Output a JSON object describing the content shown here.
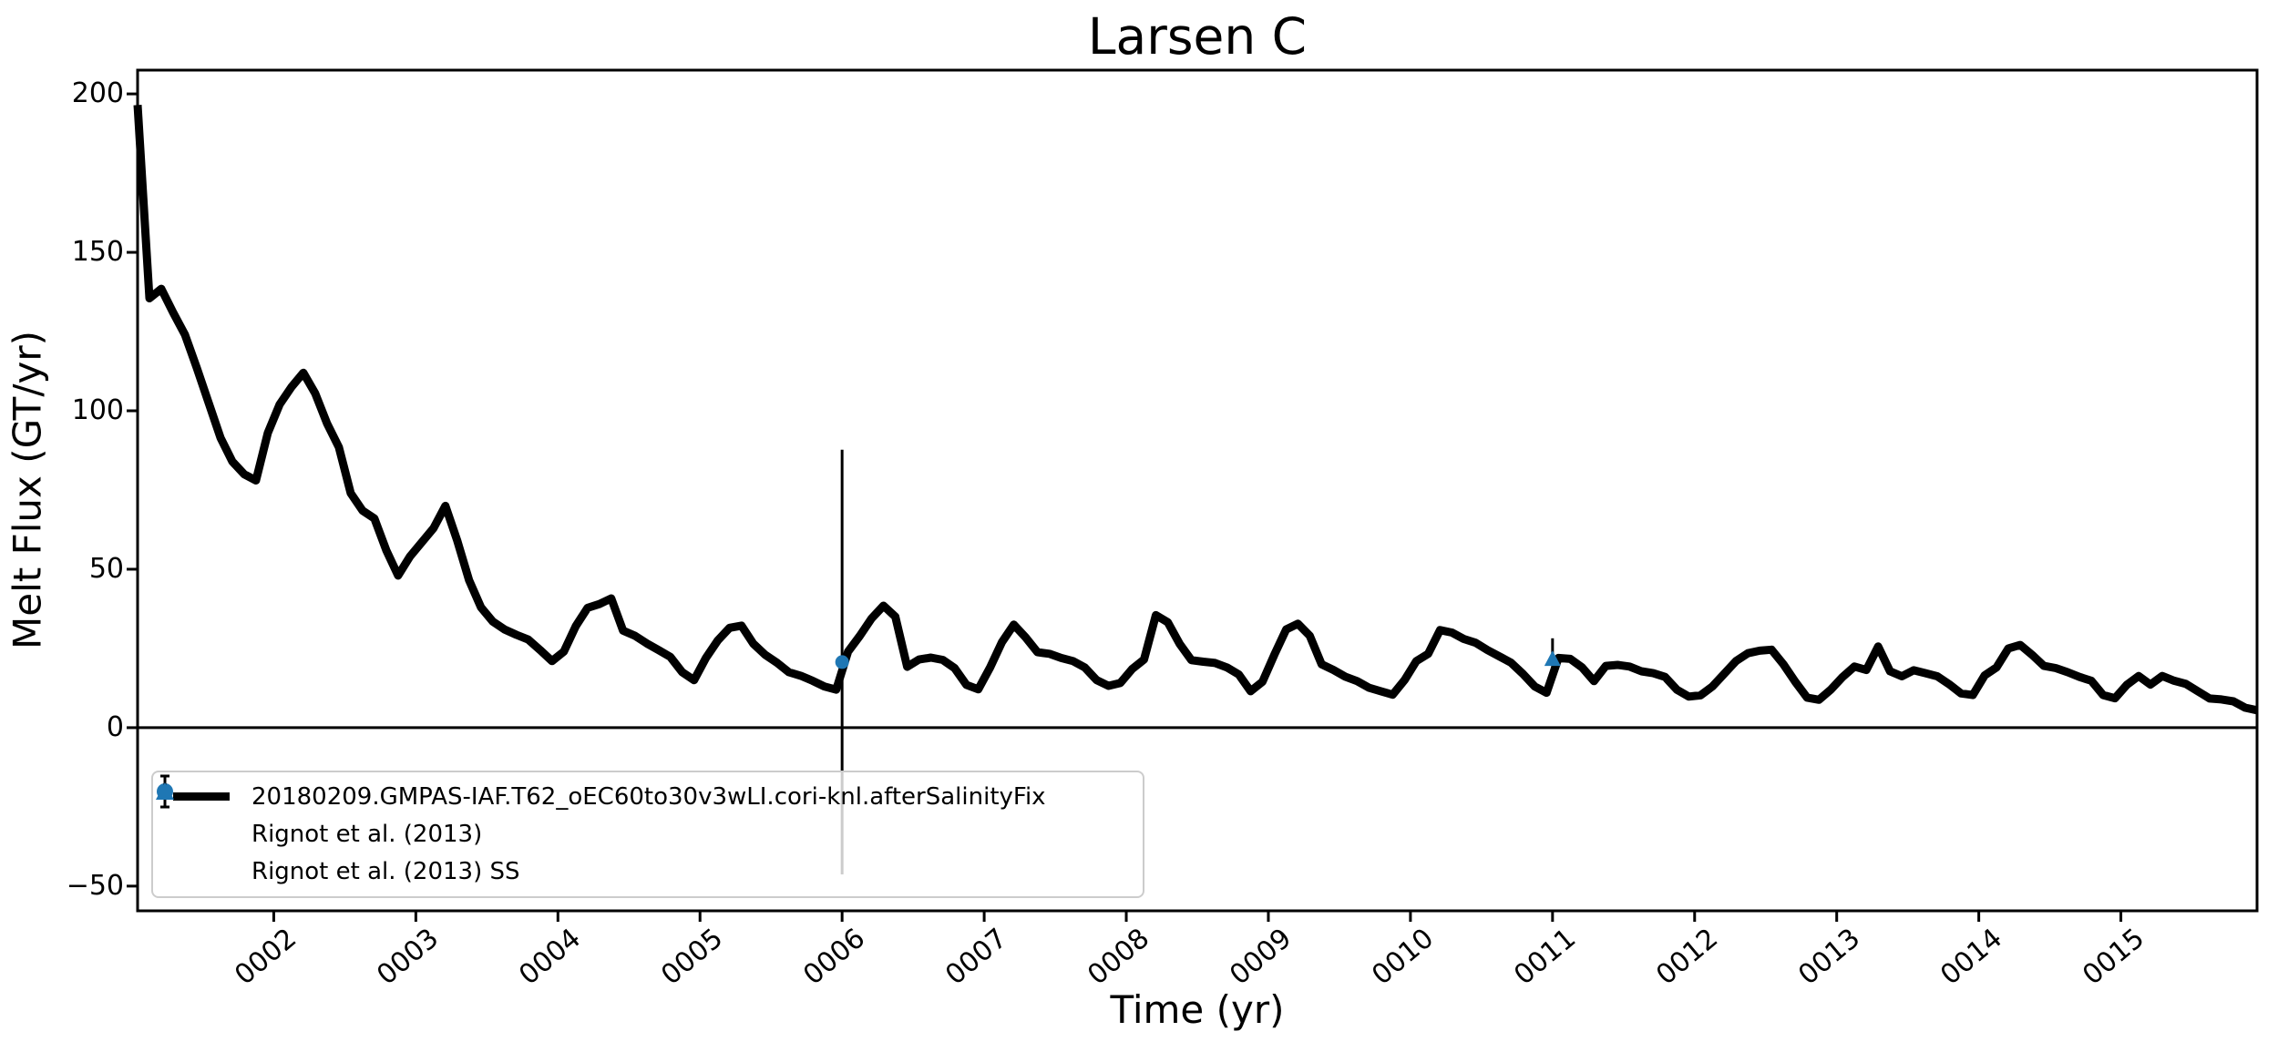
{
  "colors": {
    "line": "#000000",
    "marker_blue": "#1f77b4",
    "legend_border": "#cccccc",
    "background": "#ffffff",
    "text": "#000000"
  },
  "chart_data": {
    "type": "line",
    "title": "Larsen C",
    "xlabel": "Time (yr)",
    "ylabel": "Melt Flux (GT/yr)",
    "xlim": [
      1.0417,
      15.9583
    ],
    "ylim": [
      -57.8,
      207.5
    ],
    "grid": false,
    "axhline_y": 0,
    "x_ticks": {
      "values": [
        2,
        3,
        4,
        5,
        6,
        7,
        8,
        9,
        10,
        11,
        12,
        13,
        14,
        15
      ],
      "labels": [
        "0002",
        "0003",
        "0004",
        "0005",
        "0006",
        "0007",
        "0008",
        "0009",
        "0010",
        "0011",
        "0012",
        "0013",
        "0014",
        "0015"
      ],
      "rotation_deg": 40
    },
    "y_ticks": {
      "values": [
        -50,
        0,
        50,
        100,
        150,
        200
      ],
      "labels": [
        "−50",
        "0",
        "50",
        "100",
        "150",
        "200"
      ]
    },
    "series": [
      {
        "name": "20180209.GMPAS-IAF.T62_oEC60to30v3wLI.cori-knl.afterSalinityFix",
        "color": "#000000",
        "linewidth": 9,
        "x_start": 1.041667,
        "x_step": 0.083333,
        "y": [
          196.5,
          135.5,
          138.5,
          131,
          124,
          113.5,
          102.5,
          91.5,
          84,
          80,
          78,
          93,
          102,
          107.5,
          112,
          105.5,
          96,
          88.5,
          74,
          68.5,
          66,
          56,
          48,
          54,
          58.5,
          63,
          70,
          59,
          46.5,
          38,
          33.5,
          31,
          29.3,
          27.8,
          24.5,
          21,
          24,
          32,
          37.8,
          39,
          40.8,
          30.6,
          29,
          26.6,
          24.5,
          22.3,
          17.5,
          15,
          22,
          27.5,
          31.5,
          32.2,
          26.5,
          23,
          20.5,
          17.5,
          16.4,
          14.8,
          13,
          12,
          24,
          29,
          34.5,
          38.5,
          35,
          19.2,
          21.5,
          22.1,
          21.4,
          18.8,
          13.5,
          12.1,
          19,
          27,
          32.5,
          28.5,
          23.8,
          23.3,
          22,
          21,
          19,
          15,
          13.2,
          14.1,
          18.5,
          21.5,
          35.5,
          33.3,
          26.5,
          21.3,
          20.8,
          20.4,
          19,
          16.8,
          11.5,
          14.5,
          23,
          31,
          32.8,
          29,
          20,
          18.2,
          16.1,
          14.7,
          12.6,
          11.5,
          10.4,
          15,
          21,
          23.3,
          30.8,
          30,
          28,
          26.8,
          24.5,
          22.5,
          20.5,
          17,
          13,
          11,
          22,
          21.7,
          19,
          14.7,
          19.5,
          19.8,
          19.3,
          17.8,
          17.2,
          16,
          12,
          9.8,
          10.2,
          13,
          17,
          21,
          23.5,
          24.3,
          24.6,
          20,
          14.5,
          9.5,
          8.8,
          12,
          16,
          19.3,
          18.2,
          25.6,
          17.8,
          16.2,
          18.1,
          17.2,
          16.2,
          13.7,
          10.8,
          10.3,
          16.5,
          19,
          25,
          26.1,
          23,
          19.5,
          18.8,
          17.5,
          16,
          14.8,
          10.3,
          9.3,
          13.5,
          16.3,
          13.6,
          16.3,
          14.8,
          13.8,
          11.5,
          9.2,
          8.9,
          8.3,
          6.3,
          5.5
        ]
      }
    ],
    "observations": [
      {
        "name": "Rignot et al. (2013)",
        "marker": "circle",
        "color": "#1f77b4",
        "x": 6.0,
        "y": 20.7,
        "yerr": 67.0
      },
      {
        "name": "Rignot et al. (2013) SS",
        "marker": "triangle",
        "color": "#1f77b4",
        "x": 11.0,
        "y": 21.8,
        "yerr": 6.4
      }
    ],
    "legend": {
      "position": "lower left",
      "entries": [
        "20180209.GMPAS-IAF.T62_oEC60to30v3wLI.cori-knl.afterSalinityFix",
        "Rignot et al. (2013)",
        "Rignot et al. (2013) SS"
      ]
    }
  }
}
